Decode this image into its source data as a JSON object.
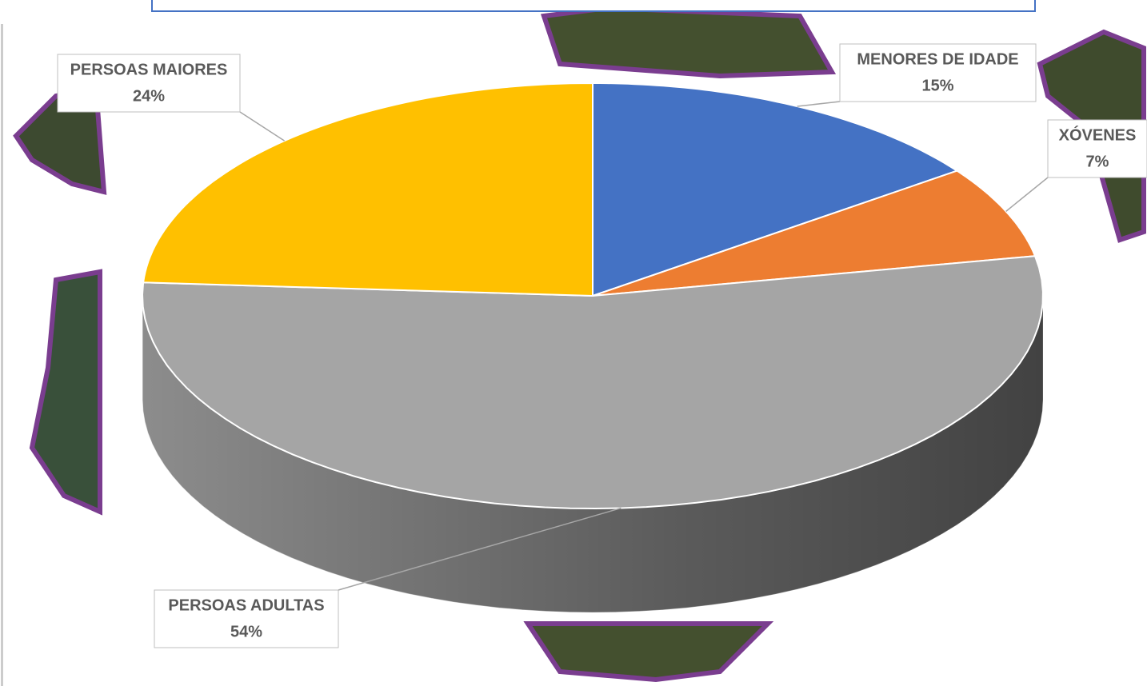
{
  "chart_data": {
    "type": "pie",
    "categories": [
      "MENORES DE IDADE",
      "XÓVENES",
      "PERSOAS ADULTAS",
      "PERSOAS MAIORES"
    ],
    "values": [
      15,
      7,
      54,
      24
    ],
    "value_labels": [
      "15%",
      "7%",
      "54%",
      "24%"
    ],
    "colors": [
      "#4472c4",
      "#ed7d31",
      "#a5a5a5",
      "#ffc000"
    ]
  }
}
